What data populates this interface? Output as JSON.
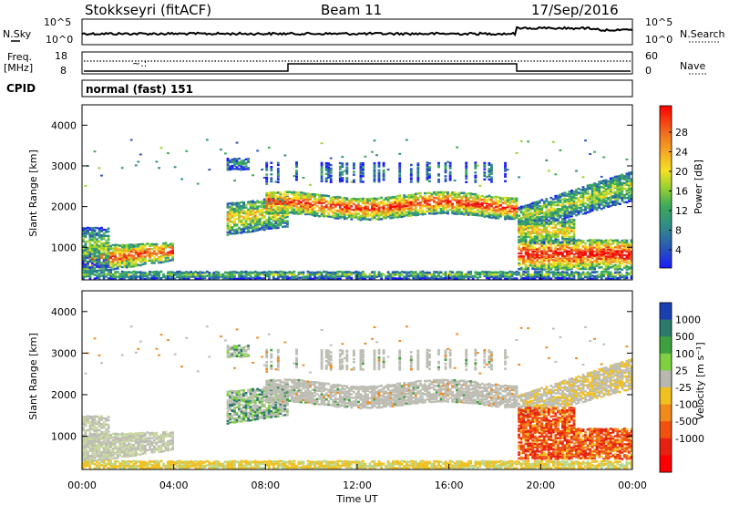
{
  "header": {
    "station": "Stokkseyri (fitACF)",
    "beam": "Beam 11",
    "date": "17/Sep/2016"
  },
  "noise_panel": {
    "left_label": "N.Sky",
    "right_label": "N.Search",
    "left_ticks": [
      "10^5",
      "10^0"
    ],
    "right_ticks": [
      "10^5",
      "10^0"
    ]
  },
  "freq_panel": {
    "left_label_1": "Freq.",
    "left_label_2": "[MHz]",
    "right_label": "Nave",
    "left_ticks": [
      "18",
      "8"
    ],
    "right_ticks": [
      "60",
      "0"
    ]
  },
  "cpid": {
    "label": "CPID",
    "value": "normal (fast) 151"
  },
  "chart_data": [
    {
      "type": "heatmap",
      "parameter": "power",
      "ylabel": "Slant Range [km]",
      "xlabel": "Time UT",
      "ylim": [
        200,
        4500
      ],
      "xlim": [
        0,
        24
      ],
      "y_ticks": [
        "1000",
        "2000",
        "3000",
        "4000"
      ],
      "colorbar": {
        "label": "Power [dB]",
        "ticks": [
          "28",
          "24",
          "20",
          "16",
          "12",
          "8",
          "4"
        ],
        "colors": [
          "#1a1aff",
          "#2a55b8",
          "#2f8a8a",
          "#3aaa5a",
          "#9cd230",
          "#f5e023",
          "#f5a623",
          "#f06a1e",
          "#e8261a",
          "#ff0000"
        ]
      },
      "regions": [
        {
          "t": [
            0,
            4
          ],
          "r": [
            300,
            1500
          ],
          "level": "high"
        },
        {
          "t": [
            6.5,
            9
          ],
          "r": [
            1300,
            2300
          ],
          "level": "medium"
        },
        {
          "t": [
            8,
            19
          ],
          "r": [
            1500,
            2600
          ],
          "level": "high"
        },
        {
          "t": [
            19.5,
            24
          ],
          "r": [
            400,
            1800
          ],
          "level": "high"
        },
        {
          "t": [
            19.5,
            23.5
          ],
          "r": [
            1800,
            2600
          ],
          "level": "low"
        }
      ]
    },
    {
      "type": "heatmap",
      "parameter": "velocity",
      "ylabel": "Slant Range [km]",
      "xlabel": "Time UT",
      "ylim": [
        200,
        4500
      ],
      "xlim": [
        0,
        24
      ],
      "y_ticks": [
        "1000",
        "2000",
        "3000",
        "4000"
      ],
      "x_ticks": [
        "00:00",
        "04:00",
        "08:00",
        "12:00",
        "16:00",
        "20:00",
        "00:00"
      ],
      "colorbar": {
        "label": "Velocity [m s⁻¹]",
        "ticks": [
          "1000",
          "500",
          "100",
          "25",
          "-25",
          "-100",
          "-500",
          "-1000"
        ],
        "colors": [
          "#1a3fb0",
          "#2d7a6a",
          "#3fa03f",
          "#7ed040",
          "#b8b8b0",
          "#f0c020",
          "#f08a1a",
          "#f05010",
          "#e82010",
          "#ff0000"
        ]
      }
    }
  ]
}
